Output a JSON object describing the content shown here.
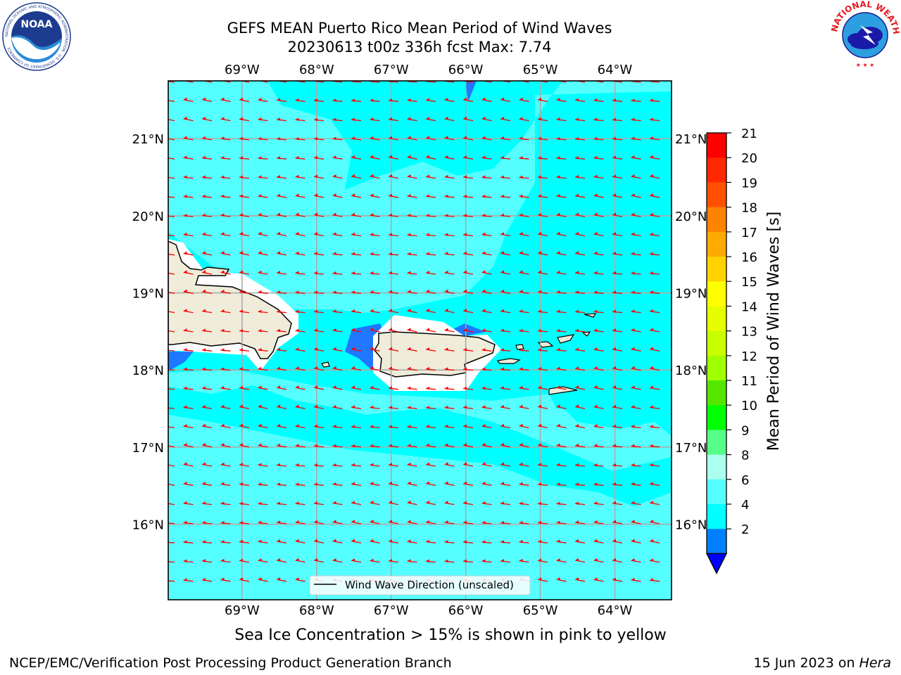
{
  "title_line1": "GEFS MEAN Puerto Rico Mean Period of Wind Waves",
  "title_line2": "20230613 t00z 336h fcst   Max: 7.74",
  "logos": {
    "left": {
      "icon": "noaa-logo",
      "text": "NOAA",
      "ring_text": "NATIONAL OCEANIC AND ATMOSPHERIC ADMINISTRATION · U.S. DEPARTMENT OF COMMERCE"
    },
    "right": {
      "icon": "national-weather-service-logo",
      "ring_text": "NATIONAL WEATHER SERVICE"
    }
  },
  "map": {
    "lon_labels": [
      "69°W",
      "68°W",
      "67°W",
      "66°W",
      "65°W",
      "64°W"
    ],
    "lat_labels": [
      "21°N",
      "20°N",
      "19°N",
      "18°N",
      "17°N",
      "16°N"
    ],
    "lon_values": [
      -69,
      -68,
      -67,
      -66,
      -65,
      -64
    ],
    "lat_values": [
      21,
      20,
      19,
      18,
      17,
      16
    ],
    "lon_range": [
      -69.99,
      -63.24
    ],
    "lat_range": [
      15.02,
      21.75
    ],
    "legend_label": "Wind Wave Direction (unscaled)",
    "arrow_color": "#ff0000",
    "land_color": "#efedda",
    "grid": true
  },
  "colorbar": {
    "label": "Mean Period of Wind Waves [s]",
    "ticks": [
      "21",
      "20",
      "19",
      "18",
      "17",
      "16",
      "15",
      "14",
      "13",
      "12",
      "11",
      "10",
      "9",
      "8",
      "6",
      "4",
      "2"
    ],
    "colors": [
      "#ff0000",
      "#ff2800",
      "#ff5000",
      "#ff8200",
      "#ffaa00",
      "#ffd200",
      "#ffff00",
      "#e6ff00",
      "#c8ff00",
      "#a0ff00",
      "#55e600",
      "#00ff00",
      "#55ff88",
      "#aaffee",
      "#55ffff",
      "#00ffff",
      "#0080ff"
    ],
    "under_color": "#0000ff"
  },
  "note": "Sea Ice Concentration > 15% is shown in pink to yellow",
  "footer_left": "NCEP/EMC/Verification Post Processing Product Generation Branch",
  "footer_right_prefix": "15 Jun 2023 on ",
  "footer_right_host": "Hera"
}
